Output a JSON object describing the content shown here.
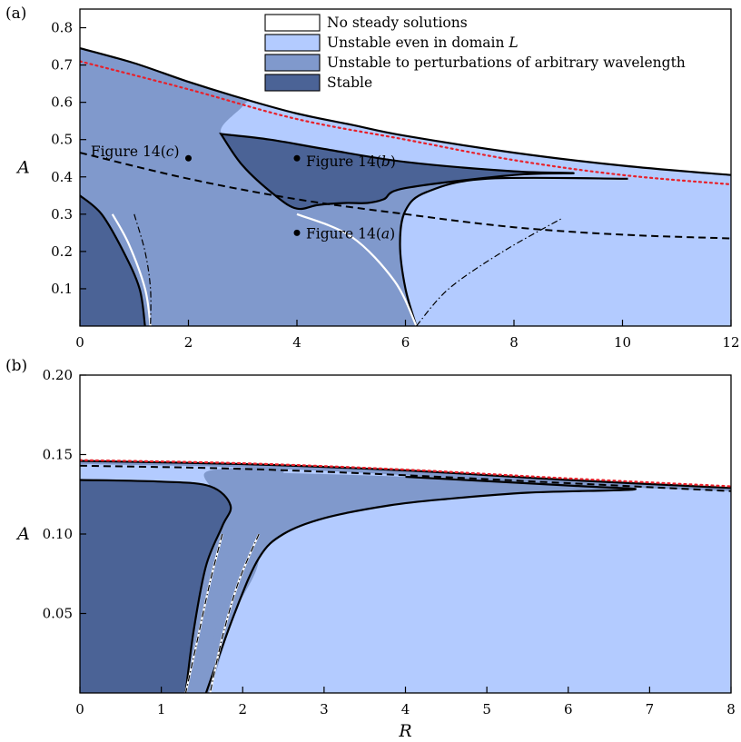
{
  "chart_data": [
    {
      "panel_label": "(a)",
      "type": "area",
      "xlabel": "",
      "ylabel": "A",
      "xlim": [
        0,
        12
      ],
      "ylim": [
        0,
        0.85
      ],
      "xticks": [
        0,
        2,
        4,
        6,
        8,
        10,
        12
      ],
      "xtick_labels": [
        "0",
        "2",
        "4",
        "6",
        "8",
        "10",
        "12"
      ],
      "yticks": [
        0.1,
        0.2,
        0.3,
        0.4,
        0.5,
        0.6,
        0.7,
        0.8
      ],
      "ytick_labels": [
        "0.1",
        "0.2",
        "0.3",
        "0.4",
        "0.5",
        "0.6",
        "0.7",
        "0.8"
      ],
      "legend": {
        "placement": "top-center",
        "entries": [
          {
            "label": "No steady solutions",
            "color": "#ffffff"
          },
          {
            "label": "Unstable even in domain L",
            "color": "#b3cbff"
          },
          {
            "label": "Unstable to perturbations of arbitrary wavelength",
            "color": "#8099cc"
          },
          {
            "label": "Stable",
            "color": "#4b6396"
          }
        ]
      },
      "regions": {
        "upper_boundary": [
          [
            0,
            0.745
          ],
          [
            1,
            0.705
          ],
          [
            2,
            0.655
          ],
          [
            3,
            0.61
          ],
          [
            4,
            0.57
          ],
          [
            5,
            0.54
          ],
          [
            6,
            0.51
          ],
          [
            8,
            0.465
          ],
          [
            10,
            0.43
          ],
          [
            12,
            0.405
          ]
        ],
        "unstable_light_top": [
          [
            2.6,
            0.52
          ],
          [
            4,
            0.505
          ],
          [
            6,
            0.485
          ],
          [
            8,
            0.465
          ],
          [
            10,
            0.43
          ],
          [
            12,
            0.405
          ]
        ],
        "light_lower_boundary": [
          [
            6.2,
            0
          ],
          [
            6.0,
            0.1
          ],
          [
            5.9,
            0.22
          ],
          [
            6.0,
            0.31
          ],
          [
            6.4,
            0.36
          ],
          [
            7.5,
            0.395
          ],
          [
            10.1,
            0.395
          ]
        ],
        "stable_island": [
          [
            2.6,
            0.515
          ],
          [
            3.5,
            0.5
          ],
          [
            4.5,
            0.475
          ],
          [
            6,
            0.44
          ],
          [
            8,
            0.415
          ],
          [
            9.1,
            0.41
          ],
          [
            8,
            0.405
          ],
          [
            6,
            0.37
          ],
          [
            5.6,
            0.34
          ],
          [
            5.3,
            0.33
          ],
          [
            4.9,
            0.33
          ],
          [
            4.4,
            0.325
          ],
          [
            4,
            0.315
          ],
          [
            3.6,
            0.35
          ],
          [
            3.0,
            0.43
          ],
          [
            2.6,
            0.515
          ]
        ],
        "stable_corner": [
          [
            0,
            0.35
          ],
          [
            0.4,
            0.3
          ],
          [
            0.8,
            0.2
          ],
          [
            1.1,
            0.1
          ],
          [
            1.2,
            0
          ]
        ]
      },
      "curves": [
        {
          "style": "dotted-red",
          "color": "#e8202a",
          "points": [
            [
              0,
              0.71
            ],
            [
              2,
              0.635
            ],
            [
              4,
              0.555
            ],
            [
              6,
              0.5
            ],
            [
              8,
              0.445
            ],
            [
              10,
              0.405
            ],
            [
              12,
              0.38
            ]
          ]
        },
        {
          "style": "dashed-black",
          "color": "#000000",
          "points": [
            [
              0,
              0.465
            ],
            [
              2,
              0.395
            ],
            [
              4,
              0.34
            ],
            [
              6,
              0.3
            ],
            [
              8,
              0.265
            ],
            [
              10,
              0.245
            ],
            [
              12,
              0.235
            ]
          ]
        },
        {
          "style": "white",
          "color": "#ffffff",
          "points": [
            [
              0.6,
              0.3
            ],
            [
              0.9,
              0.22
            ],
            [
              1.2,
              0.1
            ],
            [
              1.3,
              0
            ]
          ]
        },
        {
          "style": "dashdot-black",
          "color": "#000000",
          "points": [
            [
              1.0,
              0.3
            ],
            [
              1.2,
              0.2
            ],
            [
              1.3,
              0.1
            ],
            [
              1.3,
              0
            ]
          ]
        },
        {
          "style": "white",
          "color": "#ffffff",
          "points": [
            [
              4.0,
              0.3
            ],
            [
              5.0,
              0.24
            ],
            [
              5.8,
              0.12
            ],
            [
              6.2,
              0
            ]
          ]
        },
        {
          "style": "dashdot-black",
          "color": "#000000",
          "points": [
            [
              6.2,
              0
            ],
            [
              6.8,
              0.1
            ],
            [
              7.8,
              0.2
            ],
            [
              8.9,
              0.29
            ]
          ]
        }
      ],
      "annotations": [
        {
          "label": "Figure 14(a)",
          "x": 4,
          "y": 0.25
        },
        {
          "label": "Figure 14(b)",
          "x": 4,
          "y": 0.45
        },
        {
          "label": "Figure 14(c)",
          "x": 2,
          "y": 0.45
        }
      ]
    },
    {
      "panel_label": "(b)",
      "type": "area",
      "xlabel": "R",
      "ylabel": "A",
      "xlim": [
        0,
        8
      ],
      "ylim": [
        0,
        0.2
      ],
      "xticks": [
        0,
        1,
        2,
        3,
        4,
        5,
        6,
        7,
        8
      ],
      "xtick_labels": [
        "0",
        "1",
        "2",
        "3",
        "4",
        "5",
        "6",
        "7",
        "8"
      ],
      "yticks": [
        0.05,
        0.1,
        0.15,
        0.2
      ],
      "ytick_labels": [
        "0.05",
        "0.10",
        "0.15",
        "0.20"
      ],
      "regions": {
        "upper_boundary": [
          [
            0,
            0.146
          ],
          [
            2,
            0.144
          ],
          [
            4,
            0.14
          ],
          [
            6,
            0.134
          ],
          [
            8,
            0.129
          ]
        ],
        "mid_band_top": [
          [
            0,
            0.144
          ],
          [
            2,
            0.142
          ],
          [
            4,
            0.137
          ],
          [
            6,
            0.131
          ],
          [
            8,
            0.127
          ]
        ],
        "stable_main": [
          [
            0,
            0.134
          ],
          [
            1.0,
            0.133
          ],
          [
            1.6,
            0.13
          ],
          [
            1.85,
            0.118
          ],
          [
            1.75,
            0.105
          ],
          [
            1.55,
            0.08
          ],
          [
            1.4,
            0.04
          ],
          [
            1.3,
            0
          ]
        ],
        "stable_finger": [
          [
            2.0,
            0.139
          ],
          [
            4,
            0.136
          ],
          [
            6.2,
            0.13
          ],
          [
            6.8,
            0.128
          ],
          [
            5.5,
            0.126
          ],
          [
            4.5,
            0.122
          ],
          [
            3.8,
            0.118
          ],
          [
            3.0,
            0.11
          ],
          [
            2.5,
            0.1
          ],
          [
            2.2,
            0.085
          ],
          [
            1.9,
            0.05
          ],
          [
            1.55,
            0
          ]
        ]
      },
      "curves": [
        {
          "style": "dotted-red",
          "color": "#e8202a",
          "points": [
            [
              0,
              0.1465
            ],
            [
              2,
              0.1445
            ],
            [
              4,
              0.1405
            ],
            [
              6,
              0.135
            ],
            [
              8,
              0.13
            ]
          ]
        },
        {
          "style": "dashed-black",
          "color": "#000000",
          "points": [
            [
              0,
              0.143
            ],
            [
              2,
              0.141
            ],
            [
              4,
              0.137
            ],
            [
              6,
              0.132
            ],
            [
              8,
              0.127
            ]
          ]
        },
        {
          "style": "white",
          "color": "#ffffff",
          "points": [
            [
              1.75,
              0.1
            ],
            [
              1.6,
              0.07
            ],
            [
              1.45,
              0.035
            ],
            [
              1.3,
              0
            ]
          ]
        },
        {
          "style": "dashdot-black",
          "color": "#000000",
          "points": [
            [
              1.75,
              0.1
            ],
            [
              1.6,
              0.07
            ],
            [
              1.45,
              0.035
            ],
            [
              1.3,
              0
            ]
          ]
        },
        {
          "style": "white",
          "color": "#ffffff",
          "points": [
            [
              2.2,
              0.1
            ],
            [
              1.95,
              0.07
            ],
            [
              1.75,
              0.035
            ],
            [
              1.6,
              0
            ]
          ]
        },
        {
          "style": "dashdot-black",
          "color": "#000000",
          "points": [
            [
              2.2,
              0.1
            ],
            [
              1.95,
              0.07
            ],
            [
              1.75,
              0.035
            ],
            [
              1.6,
              0
            ]
          ]
        }
      ]
    }
  ]
}
